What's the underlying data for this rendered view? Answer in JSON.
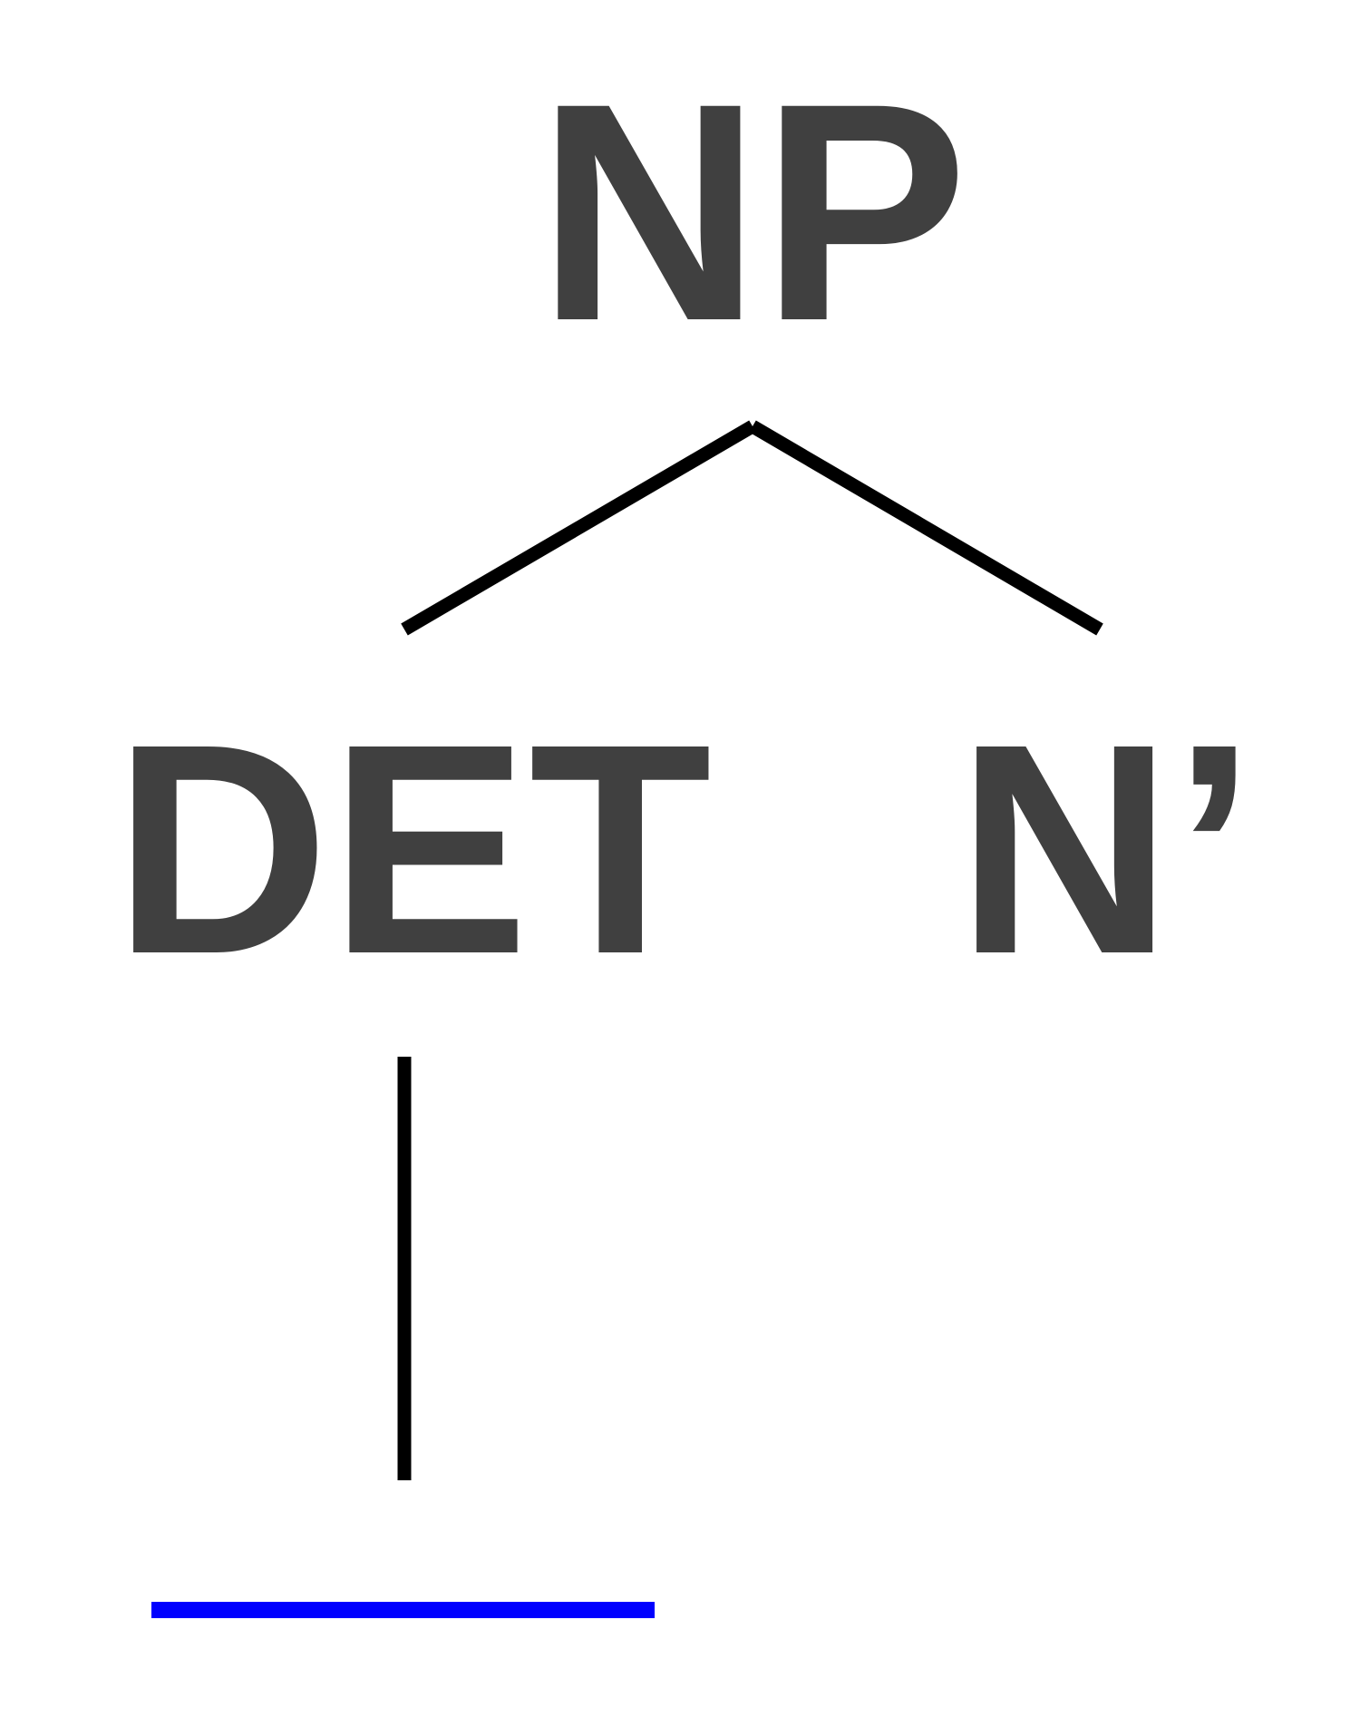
{
  "tree": {
    "root": {
      "label": "NP"
    },
    "children": [
      {
        "label": "DET",
        "child": {
          "type": "blank",
          "label": ""
        }
      },
      {
        "label": "N’"
      }
    ]
  },
  "colors": {
    "label": "#404040",
    "edge": "#000000",
    "blank": "#0000ff"
  }
}
